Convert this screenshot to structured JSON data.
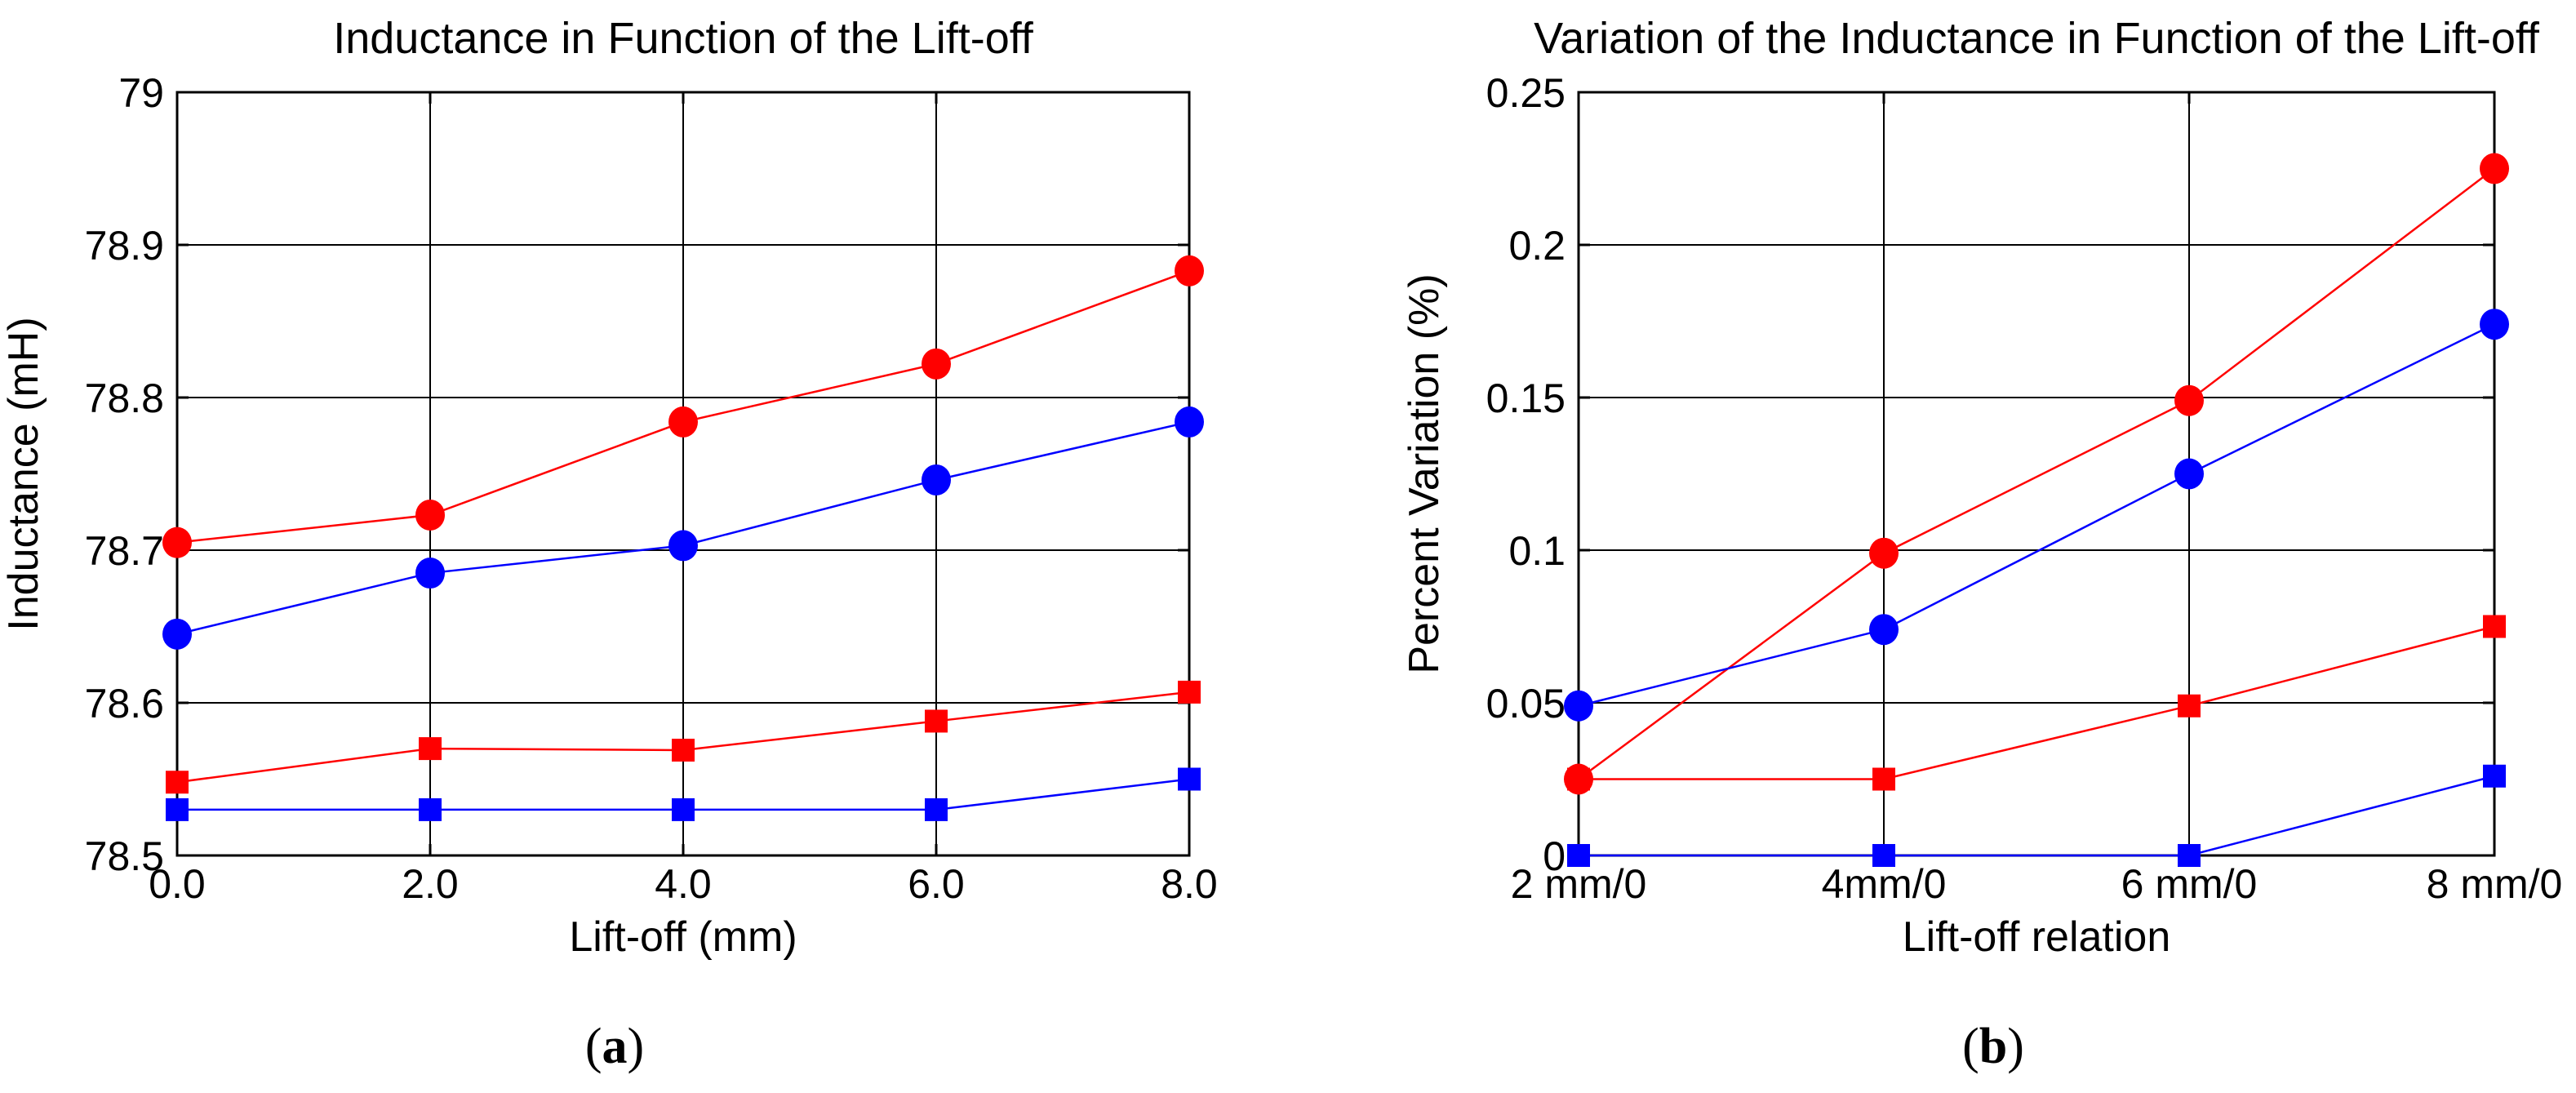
{
  "figure": {
    "background": "#ffffff",
    "axis_color": "#000000"
  },
  "chart_data": [
    {
      "id": "a",
      "type": "line",
      "title": "Inductance in Function of the Lift-off",
      "xlabel": "Lift-off (mm)",
      "ylabel": "Inductance (mH)",
      "panel_label": "(a)",
      "x": [
        0,
        2,
        4,
        6,
        8
      ],
      "xtick_labels": [
        "0.0",
        "2.0",
        "4.0",
        "6.0",
        "8.0"
      ],
      "ytick_values": [
        78.5,
        78.6,
        78.7,
        78.8,
        78.9,
        79
      ],
      "ytick_labels": [
        "78.5",
        "78.6",
        "78.7",
        "78.8",
        "78.9",
        "79"
      ],
      "xlim": [
        0,
        8
      ],
      "ylim": [
        78.5,
        79
      ],
      "grid": true,
      "legend": "none",
      "series": [
        {
          "name": "red-square",
          "color": "#ff0000",
          "marker": "square",
          "values": [
            78.548,
            78.57,
            78.569,
            78.588,
            78.607
          ]
        },
        {
          "name": "blue-square",
          "color": "#0000ff",
          "marker": "square",
          "values": [
            78.53,
            78.53,
            78.53,
            78.53,
            78.55
          ]
        },
        {
          "name": "red-circle",
          "color": "#ff0000",
          "marker": "circle",
          "values": [
            78.705,
            78.723,
            78.784,
            78.822,
            78.883
          ]
        },
        {
          "name": "blue-circle",
          "color": "#0000ff",
          "marker": "circle",
          "values": [
            78.645,
            78.685,
            78.703,
            78.746,
            78.784
          ]
        }
      ]
    },
    {
      "id": "b",
      "type": "line",
      "title": "Variation of the Inductance in Function of the Lift-off",
      "xlabel": "Lift-off relation",
      "ylabel": "Percent Variation (%)",
      "panel_label": "(b)",
      "categories": [
        "2 mm/0",
        "4mm/0",
        "6 mm/0",
        "8 mm/0"
      ],
      "xtick_labels": [
        "2 mm/0",
        "4mm/0",
        "6 mm/0",
        "8 mm/0"
      ],
      "ytick_values": [
        0,
        0.05,
        0.1,
        0.15,
        0.2,
        0.25
      ],
      "ytick_labels": [
        "0",
        "0.05",
        "0.1",
        "0.15",
        "0.2",
        "0.25"
      ],
      "ylim": [
        0,
        0.25
      ],
      "grid": true,
      "legend": "none",
      "series": [
        {
          "name": "red-square",
          "color": "#ff0000",
          "marker": "square",
          "values": [
            0.025,
            0.025,
            0.049,
            0.075
          ]
        },
        {
          "name": "blue-square",
          "color": "#0000ff",
          "marker": "square",
          "values": [
            0.0,
            0.0,
            0.0,
            0.026
          ]
        },
        {
          "name": "red-circle",
          "color": "#ff0000",
          "marker": "circle",
          "values": [
            0.025,
            0.099,
            0.149,
            0.225
          ]
        },
        {
          "name": "blue-circle",
          "color": "#0000ff",
          "marker": "circle",
          "values": [
            0.049,
            0.074,
            0.125,
            0.174
          ]
        }
      ]
    }
  ]
}
